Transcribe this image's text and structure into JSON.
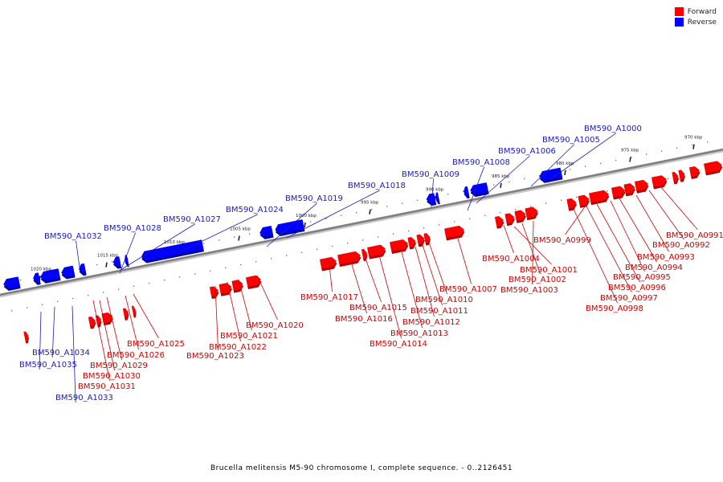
{
  "legend": {
    "forward": {
      "label": "Forward",
      "color": "#ff0000"
    },
    "reverse": {
      "label": "Reverse",
      "color": "#0000ff"
    }
  },
  "caption": "Brucella melitensis M5-90 chromosome I, complete sequence. - 0..2126451",
  "ticks": [
    "970 kbp",
    "975 kbp",
    "980 kbp",
    "985 kbp",
    "990 kbp",
    "995 kbp",
    "1000 kbp",
    "1005 kbp",
    "1010 kbp",
    "1015 kbp",
    "1020 kbp"
  ],
  "reverse_genes": [
    "BM590_A1000",
    "BM590_A1005",
    "BM590_A1006",
    "BM590_A1008",
    "BM590_A1009",
    "BM590_A1018",
    "BM590_A1019",
    "BM590_A1024",
    "BM590_A1027",
    "BM590_A1028",
    "BM590_A1032",
    "BM590_A1034",
    "BM590_A1035",
    "BM590_A1033"
  ],
  "forward_genes": [
    "BM590_A0991",
    "BM590_A0992",
    "BM590_A0993",
    "BM590_A0994",
    "BM590_A0995",
    "BM590_A0996",
    "BM590_A0997",
    "BM590_A0998",
    "BM590_A0999",
    "BM590_A1001",
    "BM590_A1002",
    "BM590_A1003",
    "BM590_A1004",
    "BM590_A1007",
    "BM590_A1010",
    "BM590_A1011",
    "BM590_A1012",
    "BM590_A1013",
    "BM590_A1014",
    "BM590_A1015",
    "BM590_A1016",
    "BM590_A1017",
    "BM590_A1020",
    "BM590_A1021",
    "BM590_A1022",
    "BM590_A1023",
    "BM590_A1025",
    "BM590_A1026",
    "BM590_A1029",
    "BM590_A1030",
    "BM590_A1031"
  ]
}
